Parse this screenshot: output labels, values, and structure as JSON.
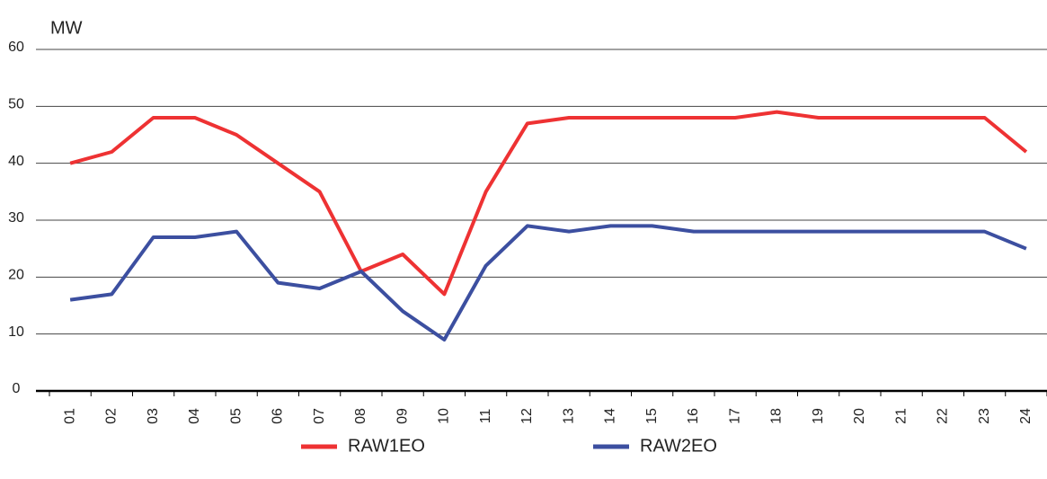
{
  "chart_data": {
    "type": "line",
    "y_label": "MW",
    "categories": [
      "01",
      "02",
      "03",
      "04",
      "05",
      "06",
      "07",
      "08",
      "09",
      "10",
      "11",
      "12",
      "13",
      "14",
      "15",
      "16",
      "17",
      "18",
      "19",
      "20",
      "21",
      "22",
      "23",
      "24"
    ],
    "series": [
      {
        "name": "RAW1EO",
        "color": "#ee3233",
        "values": [
          40,
          42,
          48,
          48,
          45,
          40,
          35,
          21,
          24,
          17,
          35,
          47,
          48,
          48,
          48,
          48,
          48,
          49,
          48,
          48,
          48,
          48,
          48,
          42
        ]
      },
      {
        "name": "RAW2EO",
        "color": "#3c4fa0",
        "values": [
          16,
          17,
          27,
          27,
          28,
          19,
          18,
          21,
          14,
          9,
          22,
          29,
          28,
          29,
          29,
          28,
          28,
          28,
          28,
          28,
          28,
          28,
          28,
          25
        ]
      }
    ],
    "ylim": [
      0,
      60
    ],
    "yticks": [
      0,
      10,
      20,
      30,
      40,
      50,
      60
    ],
    "grid": true,
    "legend": "bottom"
  }
}
